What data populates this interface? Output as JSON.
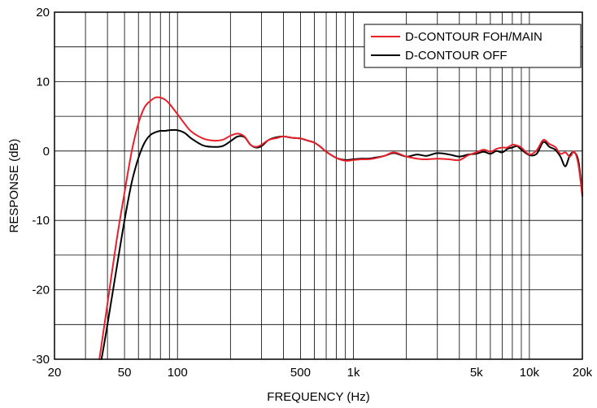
{
  "chart_data": {
    "type": "line",
    "xlabel": "FREQUENCY (Hz)",
    "ylabel": "RESPONSE (dB)",
    "xscale": "log",
    "xlim": [
      20,
      20000
    ],
    "ylim": [
      -30,
      20
    ],
    "grid": true,
    "legend_position": "top-right",
    "x_ticks": [
      {
        "value": 20,
        "label": "20"
      },
      {
        "value": 50,
        "label": "50"
      },
      {
        "value": 100,
        "label": "100"
      },
      {
        "value": 500,
        "label": "500"
      },
      {
        "value": 1000,
        "label": "1k"
      },
      {
        "value": 5000,
        "label": "5k"
      },
      {
        "value": 10000,
        "label": "10k"
      },
      {
        "value": 20000,
        "label": "20k"
      }
    ],
    "y_ticks": [
      {
        "value": 20,
        "label": "20"
      },
      {
        "value": 10,
        "label": "10"
      },
      {
        "value": 0,
        "label": "0"
      },
      {
        "value": -10,
        "label": "-10"
      },
      {
        "value": -20,
        "label": "-20"
      },
      {
        "value": -30,
        "label": "-30"
      }
    ],
    "series": [
      {
        "name": "D-CONTOUR FOH/MAIN",
        "color": "#e8202a",
        "x": [
          36,
          40,
          45,
          50,
          55,
          60,
          65,
          70,
          75,
          80,
          85,
          90,
          100,
          110,
          120,
          140,
          160,
          180,
          200,
          220,
          240,
          260,
          280,
          300,
          330,
          370,
          400,
          450,
          500,
          550,
          600,
          650,
          700,
          800,
          900,
          1000,
          1100,
          1200,
          1300,
          1500,
          1700,
          2000,
          2300,
          2600,
          3000,
          3500,
          4000,
          4500,
          5000,
          5500,
          6000,
          6500,
          7000,
          7500,
          8000,
          8500,
          9000,
          10000,
          11000,
          12000,
          13000,
          14000,
          15000,
          16000,
          17000,
          18000,
          19000,
          20000
        ],
        "y": [
          -30,
          -22,
          -13,
          -6,
          0,
          4,
          6.3,
          7.2,
          7.7,
          7.7,
          7.4,
          6.8,
          5.3,
          3.9,
          2.8,
          1.8,
          1.5,
          1.6,
          2.2,
          2.5,
          2.1,
          0.9,
          0.6,
          0.9,
          1.6,
          1.9,
          2.1,
          1.9,
          1.8,
          1.5,
          1.2,
          0.6,
          -0.1,
          -1.0,
          -1.4,
          -1.3,
          -1.2,
          -1.2,
          -1.1,
          -0.7,
          -0.2,
          -0.8,
          -1.1,
          -1.2,
          -1.1,
          -1.2,
          -1.3,
          -0.6,
          -0.2,
          0.2,
          -0.1,
          0.3,
          0.5,
          0.5,
          0.9,
          0.8,
          0.5,
          -0.5,
          0.1,
          1.6,
          1.0,
          0.6,
          -0.4,
          -0.2,
          -0.8,
          -0.1,
          -2.0,
          -6.5
        ]
      },
      {
        "name": "D-CONTOUR OFF",
        "color": "#000000",
        "x": [
          37,
          40,
          45,
          50,
          55,
          60,
          65,
          70,
          75,
          80,
          85,
          90,
          100,
          110,
          120,
          140,
          160,
          180,
          200,
          220,
          240,
          260,
          280,
          300,
          330,
          370,
          400,
          450,
          500,
          550,
          600,
          650,
          700,
          800,
          900,
          1000,
          1100,
          1200,
          1300,
          1500,
          1700,
          2000,
          2300,
          2600,
          3000,
          3500,
          4000,
          4500,
          5000,
          5500,
          6000,
          6500,
          7000,
          7500,
          8000,
          8500,
          9000,
          10000,
          11000,
          12000,
          13000,
          14000,
          15000,
          16000,
          17000,
          18000,
          19000,
          20000
        ],
        "y": [
          -30,
          -25,
          -17,
          -10,
          -4.5,
          -1,
          1.2,
          2.3,
          2.7,
          2.9,
          2.9,
          3.0,
          3.0,
          2.6,
          1.8,
          0.8,
          0.6,
          0.7,
          1.4,
          2.1,
          2.0,
          0.9,
          0.5,
          0.7,
          1.6,
          2.0,
          2.1,
          1.9,
          1.8,
          1.5,
          1.2,
          0.6,
          -0.1,
          -1.0,
          -1.3,
          -1.2,
          -1.1,
          -1.1,
          -1.0,
          -0.7,
          -0.3,
          -0.8,
          -0.5,
          -0.7,
          -0.3,
          -0.5,
          -0.8,
          -0.5,
          -0.4,
          -0.1,
          -0.4,
          0.0,
          -0.2,
          0.3,
          0.5,
          0.7,
          0.2,
          -0.6,
          -0.4,
          1.3,
          0.6,
          0.2,
          -0.8,
          -2.2,
          -0.6,
          -0.2,
          -1.5,
          -6.2
        ]
      }
    ]
  }
}
